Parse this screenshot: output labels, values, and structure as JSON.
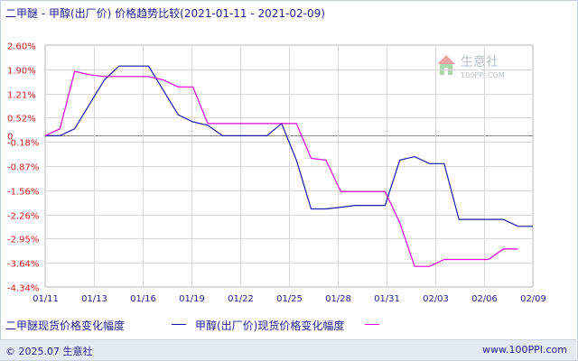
{
  "title": "二甲醚 - 甲醇(出厂价) 价格趋势比较(2021-01-11 - 2021-02-09)",
  "watermark": {
    "brand": "生意社",
    "url": "100PPI.COM"
  },
  "footer": {
    "copyright": "© 2025.07 生意社",
    "website": "www.100PPI.com"
  },
  "colors": {
    "series1": "#1a1aa8",
    "series2": "#e000e0",
    "grid": "#d8d8d8",
    "zero": "#8a8a8a",
    "text": "#1f1f8f"
  },
  "chart_data": {
    "type": "line",
    "yticks": [
      "2.60%",
      "1.90%",
      "1.21%",
      "0.52%",
      "0",
      "-0.18%",
      "-0.87%",
      "-1.56%",
      "-2.26%",
      "-2.95%",
      "-3.64%",
      "-4.34%"
    ],
    "ytick_values": [
      2.6,
      1.9,
      1.21,
      0.52,
      0,
      -0.18,
      -0.87,
      -1.56,
      -2.26,
      -2.95,
      -3.64,
      -4.34
    ],
    "ylim": [
      -4.34,
      2.6
    ],
    "xticks": [
      "01/11",
      "01/13",
      "01/16",
      "01/19",
      "01/22",
      "01/25",
      "01/28",
      "01/31",
      "02/03",
      "02/06",
      "02/09"
    ],
    "grid": true,
    "legend_position": "bottom",
    "series": [
      {
        "name": "二甲醚现货价格变化幅度",
        "points": [
          [
            0,
            0
          ],
          [
            1,
            0
          ],
          [
            2,
            0.2
          ],
          [
            3,
            0.9
          ],
          [
            4,
            1.6
          ],
          [
            5,
            2.0
          ],
          [
            6,
            2.0
          ],
          [
            7,
            2.0
          ],
          [
            9,
            0.6
          ],
          [
            10,
            0.4
          ],
          [
            11,
            0.3
          ],
          [
            12,
            0
          ],
          [
            13,
            0
          ],
          [
            14,
            0
          ],
          [
            15,
            0
          ],
          [
            16,
            0.35
          ],
          [
            17,
            -0.7
          ],
          [
            18,
            -2.1
          ],
          [
            19,
            -2.1
          ],
          [
            20,
            -2.05
          ],
          [
            21,
            -2.0
          ],
          [
            22,
            -2.0
          ],
          [
            23,
            -2.0
          ],
          [
            24,
            -0.7
          ],
          [
            25,
            -0.6
          ],
          [
            26,
            -0.8
          ],
          [
            27,
            -0.8
          ],
          [
            28,
            -2.4
          ],
          [
            29,
            -2.4
          ],
          [
            30,
            -2.4
          ],
          [
            31,
            -2.4
          ],
          [
            32,
            -2.6
          ],
          [
            33,
            -2.6
          ]
        ]
      },
      {
        "name": "甲醇(出厂价)现货价格变化幅度",
        "points": [
          [
            0,
            0
          ],
          [
            1,
            0.2
          ],
          [
            2,
            1.85
          ],
          [
            3,
            1.75
          ],
          [
            4,
            1.7
          ],
          [
            5,
            1.7
          ],
          [
            6,
            1.7
          ],
          [
            7,
            1.7
          ],
          [
            8,
            1.6
          ],
          [
            9,
            1.4
          ],
          [
            10,
            1.4
          ],
          [
            11,
            0.35
          ],
          [
            12,
            0.35
          ],
          [
            13,
            0.35
          ],
          [
            14,
            0.35
          ],
          [
            15,
            0.35
          ],
          [
            16,
            0.35
          ],
          [
            17,
            0.35
          ],
          [
            18,
            -0.65
          ],
          [
            19,
            -0.7
          ],
          [
            20,
            -1.6
          ],
          [
            21,
            -1.6
          ],
          [
            22,
            -1.6
          ],
          [
            23,
            -1.6
          ],
          [
            24,
            -2.5
          ],
          [
            25,
            -3.75
          ],
          [
            26,
            -3.75
          ],
          [
            27,
            -3.55
          ],
          [
            28,
            -3.55
          ],
          [
            29,
            -3.55
          ],
          [
            30,
            -3.55
          ],
          [
            31,
            -3.25
          ],
          [
            32,
            -3.25
          ]
        ]
      }
    ]
  }
}
